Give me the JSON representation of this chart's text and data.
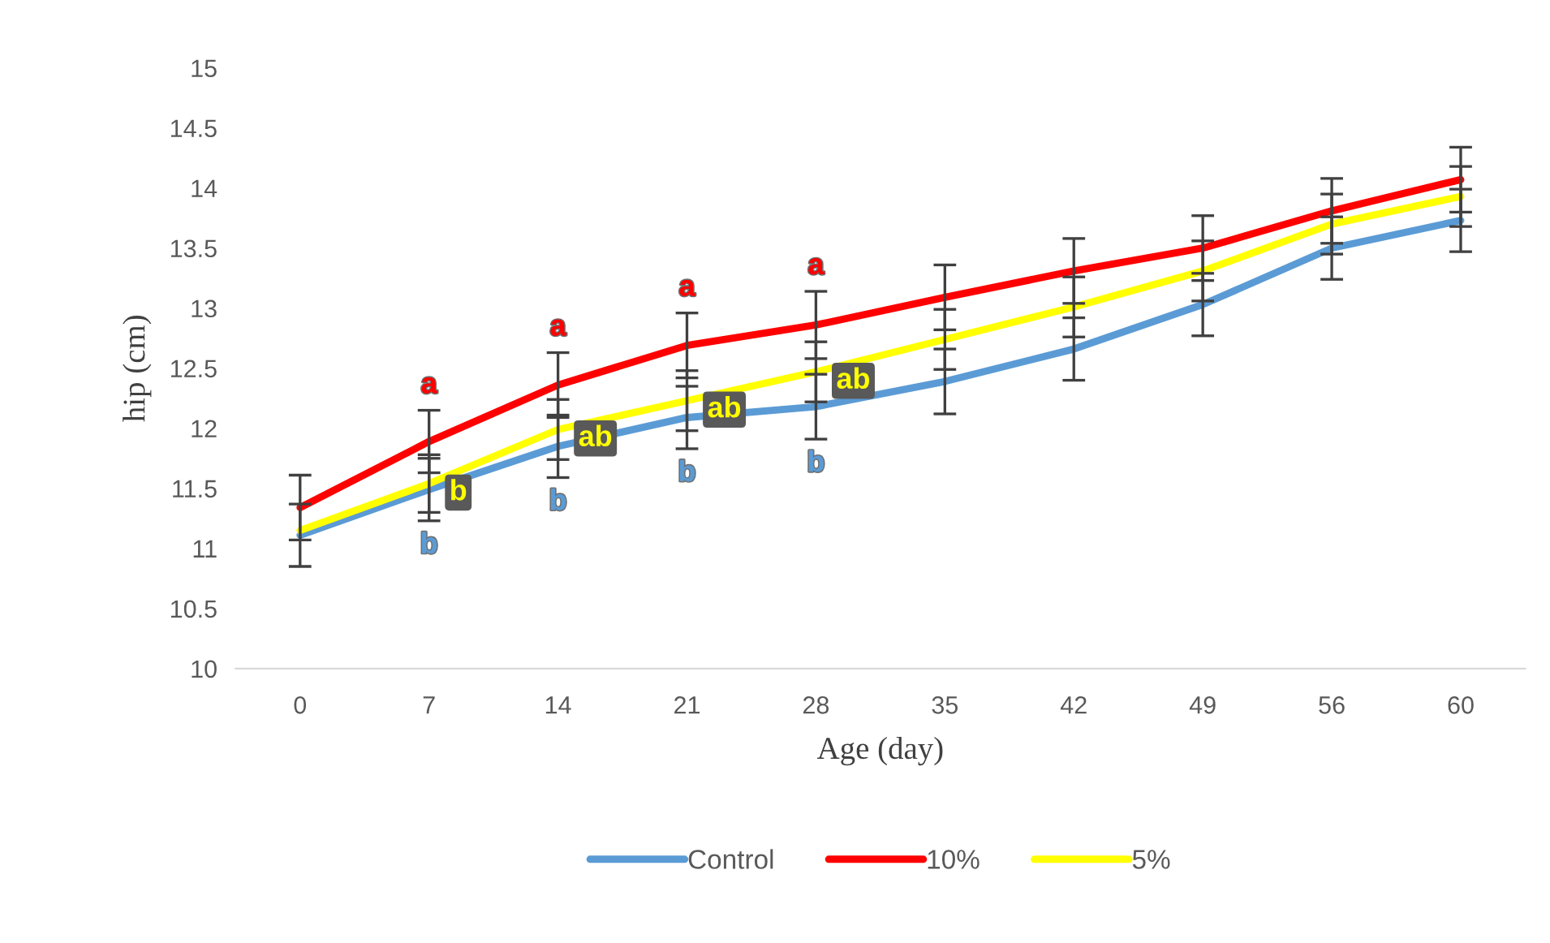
{
  "chart_data": {
    "type": "line",
    "xlabel": "Age (day)",
    "ylabel": "hip (cm)",
    "categories": [
      "0",
      "7",
      "14",
      "21",
      "28",
      "35",
      "42",
      "49",
      "56",
      "60"
    ],
    "ylim": [
      10,
      15
    ],
    "yticks": [
      10,
      10.5,
      11,
      11.5,
      12,
      12.5,
      13,
      13.5,
      14,
      14.5,
      15
    ],
    "grid": false,
    "legend": "bottom",
    "marker": "none",
    "line_style": "solid",
    "series": [
      {
        "name": "Control",
        "color": "#5b9bd5",
        "values": [
          11.11,
          11.49,
          11.85,
          12.09,
          12.18,
          12.39,
          12.66,
          13.03,
          13.5,
          13.73
        ],
        "errors": [
          0.26,
          0.26,
          0.26,
          0.26,
          0.27,
          0.27,
          0.26,
          0.26,
          0.26,
          0.26
        ],
        "value_labels": [
          null,
          "b",
          "b",
          "b",
          "b",
          null,
          null,
          null,
          null,
          null
        ]
      },
      {
        "name": "10%",
        "color": "#ff0000",
        "values": [
          11.34,
          11.89,
          12.36,
          12.69,
          12.86,
          13.09,
          13.31,
          13.5,
          13.81,
          14.07
        ],
        "errors": [
          0.27,
          0.26,
          0.27,
          0.27,
          0.28,
          0.27,
          0.27,
          0.27,
          0.27,
          0.27
        ],
        "value_labels": [
          null,
          "a",
          "a",
          "a",
          "a",
          null,
          null,
          null,
          null,
          null
        ]
      },
      {
        "name": "5%",
        "color": "#ffff00",
        "values": [
          11.15,
          11.54,
          11.99,
          12.23,
          12.47,
          12.74,
          13.01,
          13.31,
          13.7,
          13.93
        ],
        "errors": [
          null,
          0.24,
          0.25,
          0.25,
          0.25,
          0.25,
          0.25,
          0.25,
          0.25,
          0.25
        ],
        "value_labels": [
          null,
          "b",
          "ab",
          "ab",
          "ab",
          null,
          null,
          null,
          null,
          null
        ]
      }
    ]
  }
}
